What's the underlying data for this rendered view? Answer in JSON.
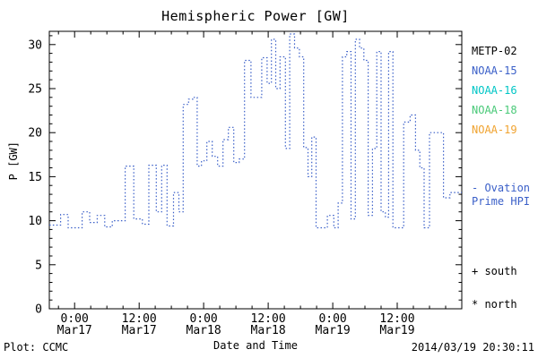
{
  "chart_data": {
    "type": "line",
    "title": "Hemispheric Power [GW]",
    "xlabel": "Date and Time",
    "ylabel": "P [GW]",
    "line_style": "dotted-step",
    "line_color": "#3a5fc8",
    "axis_color": "#000000",
    "ylim": [
      0,
      31.5
    ],
    "y_ticks": [
      0,
      5,
      10,
      15,
      20,
      25,
      30
    ],
    "y_minor_step": 1,
    "xlim_hours": [
      -4.7,
      72
    ],
    "x_minor_step_hours": 3,
    "x_ticks": [
      {
        "hour": 0,
        "line1": "0:00",
        "line2": "Mar17"
      },
      {
        "hour": 12,
        "line1": "12:00",
        "line2": "Mar17"
      },
      {
        "hour": 24,
        "line1": "0:00",
        "line2": "Mar18"
      },
      {
        "hour": 36,
        "line1": "12:00",
        "line2": "Mar18"
      },
      {
        "hour": 48,
        "line1": "0:00",
        "line2": "Mar19"
      },
      {
        "hour": 60,
        "line1": "12:00",
        "line2": "Mar19"
      }
    ],
    "series": [
      {
        "name": "Ovation Prime HPI (hours since 2014-03-17 00:00, GW)",
        "step_points": [
          [
            -4.7,
            9.5
          ],
          [
            -2.6,
            10.7
          ],
          [
            -1.2,
            9.2
          ],
          [
            1.4,
            11.0
          ],
          [
            2.8,
            9.8
          ],
          [
            4.2,
            10.6
          ],
          [
            5.6,
            9.3
          ],
          [
            7.0,
            10.0
          ],
          [
            9.4,
            16.2
          ],
          [
            11.0,
            10.2
          ],
          [
            12.6,
            9.6
          ],
          [
            13.8,
            16.3
          ],
          [
            15.2,
            11.0
          ],
          [
            16.2,
            16.3
          ],
          [
            17.2,
            9.4
          ],
          [
            18.4,
            13.2
          ],
          [
            19.4,
            11.0
          ],
          [
            20.2,
            23.2
          ],
          [
            21.2,
            23.8
          ],
          [
            22.0,
            24.0
          ],
          [
            22.8,
            16.2
          ],
          [
            23.6,
            16.8
          ],
          [
            24.6,
            19.0
          ],
          [
            25.6,
            17.3
          ],
          [
            26.6,
            16.2
          ],
          [
            27.6,
            19.2
          ],
          [
            28.6,
            20.6
          ],
          [
            29.6,
            16.6
          ],
          [
            30.6,
            17.0
          ],
          [
            31.6,
            28.2
          ],
          [
            32.8,
            24.0
          ],
          [
            34.8,
            28.5
          ],
          [
            35.8,
            25.6
          ],
          [
            36.6,
            30.6
          ],
          [
            37.4,
            25.0
          ],
          [
            38.2,
            28.6
          ],
          [
            39.2,
            18.2
          ],
          [
            40.0,
            31.2
          ],
          [
            40.9,
            29.6
          ],
          [
            41.8,
            28.6
          ],
          [
            42.6,
            18.3
          ],
          [
            43.4,
            15.0
          ],
          [
            44.1,
            19.5
          ],
          [
            44.9,
            9.2
          ],
          [
            47.0,
            10.6
          ],
          [
            48.2,
            9.2
          ],
          [
            49.0,
            12.0
          ],
          [
            49.8,
            28.6
          ],
          [
            50.6,
            29.2
          ],
          [
            51.4,
            10.2
          ],
          [
            52.2,
            30.6
          ],
          [
            53.0,
            29.6
          ],
          [
            53.8,
            28.2
          ],
          [
            54.6,
            10.6
          ],
          [
            55.4,
            18.2
          ],
          [
            56.2,
            29.2
          ],
          [
            57.0,
            11.0
          ],
          [
            57.8,
            10.4
          ],
          [
            58.4,
            29.2
          ],
          [
            59.2,
            9.2
          ],
          [
            61.2,
            21.2
          ],
          [
            62.4,
            22.0
          ],
          [
            63.4,
            18.0
          ],
          [
            64.2,
            16.0
          ],
          [
            65.0,
            9.2
          ],
          [
            66.0,
            20.0
          ],
          [
            68.6,
            12.6
          ],
          [
            69.8,
            13.2
          ]
        ]
      }
    ]
  },
  "legend": {
    "items": [
      {
        "label": "METP-02",
        "color": "#000000"
      },
      {
        "label": "NOAA-15",
        "color": "#3a5fc8"
      },
      {
        "label": "NOAA-16",
        "color": "#00c6c6"
      },
      {
        "label": "NOAA-18",
        "color": "#49c978"
      },
      {
        "label": "NOAA-19",
        "color": "#f0a330"
      }
    ],
    "annotation": {
      "line1": "- Ovation",
      "line2": "Prime HPI",
      "color": "#3a5fc8"
    },
    "markers": [
      {
        "label": "+ south"
      },
      {
        "label": "* north"
      }
    ]
  },
  "footer": {
    "plot_credit": "Plot: CCMC",
    "timestamp": "2014/03/19 20:30:11"
  }
}
